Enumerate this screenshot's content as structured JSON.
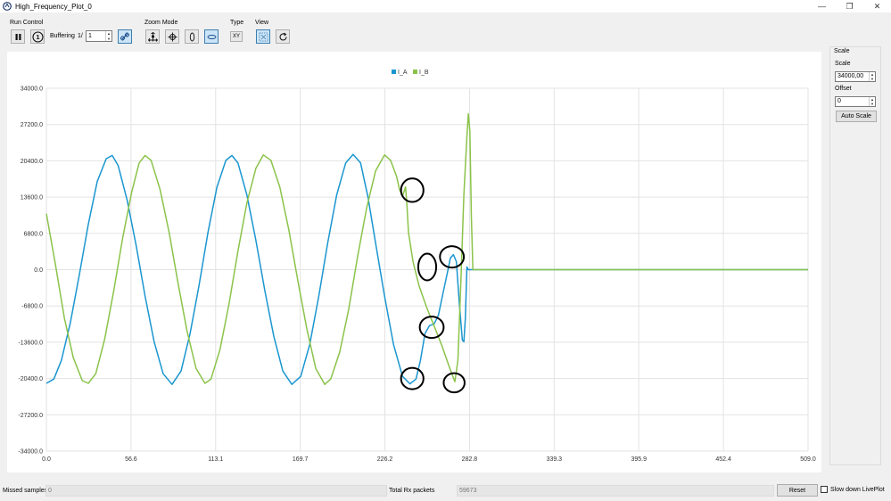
{
  "window": {
    "title": "High_Frequency_Plot_0",
    "controls": [
      "—",
      "❐",
      "✕"
    ]
  },
  "toolbar": {
    "run_control_label": "Run Control",
    "buffering_label": "Buffering",
    "buffer_prefix": "1/",
    "buffer_value": "1",
    "zoom_mode_label": "Zoom Mode",
    "type_label": "Type",
    "type_value": "XY",
    "view_label": "View"
  },
  "scale_panel": {
    "title": "Scale",
    "scale_label": "Scale",
    "scale_value": "34000,00",
    "offset_label": "Offset",
    "offset_value": "0",
    "auto_scale_label": "Auto Scale"
  },
  "status": {
    "missed_label": "Missed samples",
    "missed_value": "0",
    "rx_label": "Total Rx packets",
    "rx_value": "59673",
    "reset_label": "Reset",
    "slow_label": "Slow down LivePlot"
  },
  "colors": {
    "series_a": "#1a96d0",
    "series_b": "#8bc34a",
    "grid": "#e3e3e3",
    "annotation": "#000000"
  },
  "chart_data": {
    "type": "line",
    "title": "",
    "xlabel": "",
    "ylabel": "",
    "xlim": [
      0,
      509
    ],
    "ylim": [
      -34000,
      34000
    ],
    "x_ticks": [
      "0.0",
      "56.6",
      "113.1",
      "169.7",
      "226.2",
      "282.8",
      "339.3",
      "395.9",
      "452.4",
      "509.0"
    ],
    "y_ticks": [
      "34000.0",
      "27200.0",
      "20400.0",
      "13600.0",
      "6800.0",
      "0.0",
      "-6800.0",
      "-13600.0",
      "-20400.0",
      "-27200.0",
      "-34000.0"
    ],
    "legend_position": "top-center",
    "grid": true,
    "series": [
      {
        "name": "I_A",
        "color": "#1a96d0",
        "points": [
          [
            0,
            -21300
          ],
          [
            5,
            -20500
          ],
          [
            10,
            -17000
          ],
          [
            16,
            -10000
          ],
          [
            22,
            -1000
          ],
          [
            28,
            8500
          ],
          [
            34,
            16500
          ],
          [
            40,
            20800
          ],
          [
            44,
            21400
          ],
          [
            48,
            19500
          ],
          [
            54,
            13000
          ],
          [
            60,
            4500
          ],
          [
            66,
            -5000
          ],
          [
            72,
            -13500
          ],
          [
            78,
            -19500
          ],
          [
            84,
            -21500
          ],
          [
            90,
            -19000
          ],
          [
            96,
            -12000
          ],
          [
            102,
            -3000
          ],
          [
            108,
            7000
          ],
          [
            114,
            15500
          ],
          [
            120,
            20500
          ],
          [
            124,
            21400
          ],
          [
            128,
            20000
          ],
          [
            134,
            14000
          ],
          [
            140,
            5500
          ],
          [
            146,
            -4000
          ],
          [
            152,
            -12500
          ],
          [
            158,
            -19000
          ],
          [
            164,
            -21500
          ],
          [
            170,
            -20000
          ],
          [
            176,
            -14000
          ],
          [
            182,
            -5000
          ],
          [
            188,
            5000
          ],
          [
            194,
            14000
          ],
          [
            200,
            20000
          ],
          [
            205,
            21600
          ],
          [
            210,
            20000
          ],
          [
            215,
            13500
          ],
          [
            220,
            5000
          ],
          [
            226,
            -5000
          ],
          [
            232,
            -14000
          ],
          [
            238,
            -20000
          ],
          [
            243,
            -21400
          ],
          [
            247,
            -20500
          ],
          [
            250,
            -17000
          ],
          [
            253,
            -12000
          ],
          [
            256,
            -10500
          ],
          [
            259,
            -10200
          ],
          [
            262,
            -8500
          ],
          [
            265,
            -4500
          ],
          [
            268,
            -500
          ],
          [
            270,
            2200
          ],
          [
            272,
            2800
          ],
          [
            274,
            1500
          ],
          [
            276,
            -6500
          ],
          [
            278,
            -13200
          ],
          [
            279,
            -13500
          ],
          [
            280,
            -9000
          ],
          [
            281,
            500
          ],
          [
            282,
            0
          ],
          [
            509,
            0
          ]
        ]
      },
      {
        "name": "I_B",
        "color": "#8bc34a",
        "points": [
          [
            0,
            10500
          ],
          [
            6,
            1000
          ],
          [
            12,
            -9000
          ],
          [
            18,
            -16500
          ],
          [
            24,
            -20800
          ],
          [
            28,
            -21300
          ],
          [
            33,
            -19500
          ],
          [
            39,
            -13000
          ],
          [
            45,
            -4000
          ],
          [
            51,
            6000
          ],
          [
            57,
            14500
          ],
          [
            62,
            20000
          ],
          [
            66,
            21400
          ],
          [
            70,
            20500
          ],
          [
            76,
            15000
          ],
          [
            82,
            7000
          ],
          [
            88,
            -2500
          ],
          [
            94,
            -11500
          ],
          [
            100,
            -18500
          ],
          [
            106,
            -21300
          ],
          [
            110,
            -20500
          ],
          [
            116,
            -15000
          ],
          [
            122,
            -6500
          ],
          [
            128,
            3500
          ],
          [
            134,
            12500
          ],
          [
            140,
            19000
          ],
          [
            145,
            21500
          ],
          [
            150,
            20500
          ],
          [
            156,
            15500
          ],
          [
            162,
            7500
          ],
          [
            168,
            -2000
          ],
          [
            174,
            -11000
          ],
          [
            180,
            -18500
          ],
          [
            186,
            -21500
          ],
          [
            190,
            -20500
          ],
          [
            196,
            -15500
          ],
          [
            202,
            -7500
          ],
          [
            208,
            2500
          ],
          [
            214,
            11500
          ],
          [
            220,
            18500
          ],
          [
            226,
            21500
          ],
          [
            230,
            20500
          ],
          [
            234,
            17500
          ],
          [
            236,
            15000
          ],
          [
            238,
            13800
          ],
          [
            240,
            15500
          ],
          [
            241,
            12000
          ],
          [
            242,
            7000
          ],
          [
            245,
            1500
          ],
          [
            249,
            -3000
          ],
          [
            254,
            -7000
          ],
          [
            259,
            -10500
          ],
          [
            264,
            -14000
          ],
          [
            269,
            -18000
          ],
          [
            273,
            -21000
          ],
          [
            275,
            -17000
          ],
          [
            277,
            -2000
          ],
          [
            279,
            14000
          ],
          [
            281,
            25000
          ],
          [
            282,
            29200
          ],
          [
            283,
            26000
          ],
          [
            284,
            10000
          ],
          [
            285,
            0
          ],
          [
            509,
            0
          ]
        ]
      }
    ],
    "annotations": [
      {
        "type": "circle",
        "x": 244.5,
        "y": 14900,
        "rx": 7.5,
        "ry": 2200
      },
      {
        "type": "circle",
        "x": 254.5,
        "y": 500,
        "rx": 6,
        "ry": 2500
      },
      {
        "type": "circle",
        "x": 271,
        "y": 2400,
        "rx": 8,
        "ry": 2000
      },
      {
        "type": "circle",
        "x": 257.5,
        "y": -10800,
        "rx": 8,
        "ry": 2000
      },
      {
        "type": "circle",
        "x": 244.5,
        "y": -20400,
        "rx": 7.5,
        "ry": 2000
      },
      {
        "type": "circle",
        "x": 272.5,
        "y": -21200,
        "rx": 7,
        "ry": 1800
      }
    ]
  }
}
